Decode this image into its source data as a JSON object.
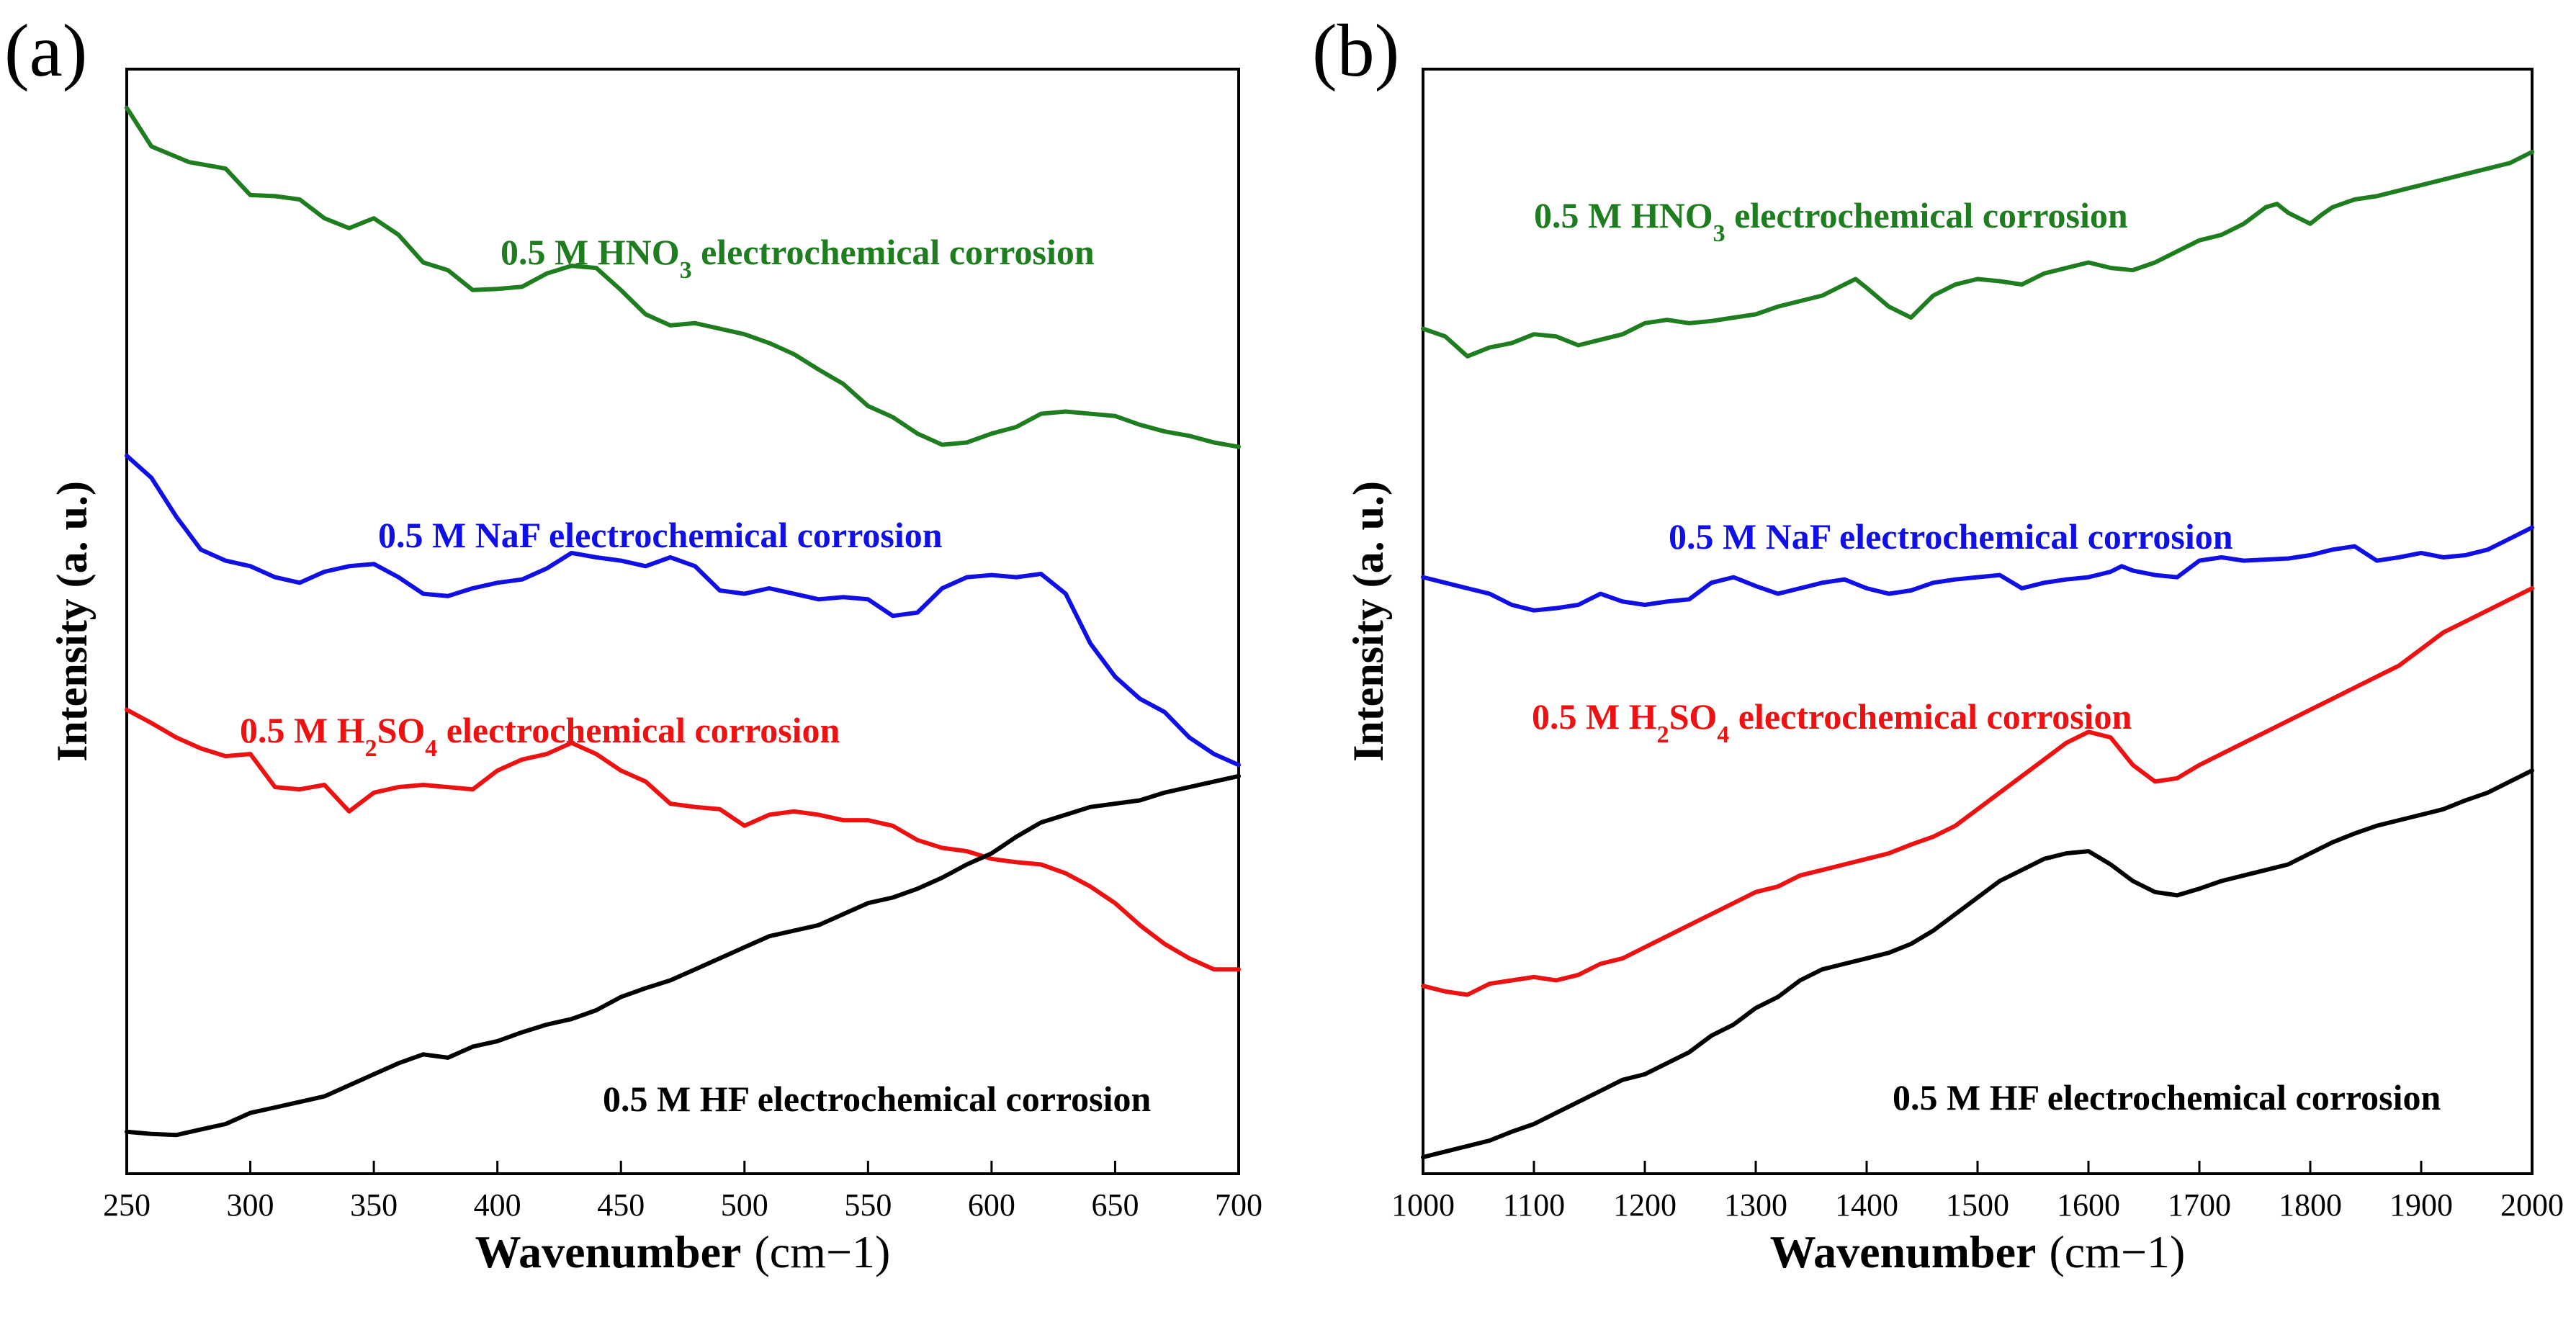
{
  "chart_data": [
    {
      "panel": "(a)",
      "type": "line",
      "xlabel": "Wavenumber",
      "xunit": "(cm−1)",
      "ylabel": "Intensity (a. u.)",
      "xlim": [
        250,
        700
      ],
      "ylim": [
        0,
        100
      ],
      "xticks": [
        250,
        300,
        350,
        400,
        450,
        500,
        550,
        600,
        650,
        700
      ],
      "yticks": [],
      "series": [
        {
          "name": "0.5 M HNO3 electrochemical corrosion",
          "label_parts": [
            "0.5 M HNO",
            "3",
            " electrochemical corrosion"
          ],
          "color": "#1e7d1e",
          "x": [
            250,
            260,
            275,
            290,
            300,
            310,
            320,
            330,
            340,
            350,
            360,
            370,
            380,
            390,
            400,
            410,
            420,
            430,
            440,
            450,
            460,
            470,
            480,
            490,
            500,
            510,
            520,
            530,
            540,
            550,
            560,
            570,
            580,
            590,
            600,
            610,
            620,
            630,
            640,
            650,
            660,
            670,
            680,
            690,
            700
          ],
          "y": [
            96.5,
            93.0,
            91.6,
            91.0,
            88.6,
            88.5,
            88.2,
            86.5,
            85.6,
            86.5,
            85.0,
            82.5,
            81.8,
            80.0,
            80.1,
            80.3,
            81.5,
            82.2,
            82.0,
            80.0,
            77.8,
            76.8,
            77.0,
            76.5,
            76.0,
            75.2,
            74.2,
            72.8,
            71.5,
            69.5,
            68.5,
            67.0,
            66.0,
            66.2,
            67.0,
            67.6,
            68.8,
            69.0,
            68.8,
            68.6,
            67.8,
            67.2,
            66.8,
            66.2,
            65.8
          ]
        },
        {
          "name": "0.5 M NaF electrochemical corrosion",
          "label_parts": [
            "0.5 M NaF electrochemical corrosion"
          ],
          "color": "#1010e6",
          "x": [
            250,
            260,
            270,
            280,
            290,
            300,
            310,
            320,
            330,
            340,
            350,
            360,
            370,
            380,
            390,
            400,
            410,
            420,
            430,
            440,
            450,
            460,
            470,
            480,
            490,
            500,
            510,
            520,
            530,
            540,
            550,
            560,
            570,
            580,
            590,
            600,
            610,
            620,
            630,
            640,
            650,
            660,
            670,
            680,
            690,
            700
          ],
          "y": [
            65.0,
            63.0,
            59.5,
            56.5,
            55.5,
            55.0,
            54.0,
            53.5,
            54.5,
            55.0,
            55.2,
            54.0,
            52.5,
            52.3,
            53.0,
            53.5,
            53.8,
            54.8,
            56.2,
            55.8,
            55.5,
            55.0,
            55.8,
            55.0,
            52.8,
            52.5,
            53.0,
            52.5,
            52.0,
            52.2,
            52.0,
            50.5,
            50.8,
            53.0,
            54.0,
            54.2,
            54.0,
            54.3,
            52.5,
            48.0,
            45.0,
            43.0,
            41.8,
            39.5,
            38.0,
            37.0
          ]
        },
        {
          "name": "0.5 M H2SO4 electrochemical corrosion",
          "label_parts": [
            "0.5 M H",
            "2",
            "SO",
            "4",
            " electrochemical corrosion"
          ],
          "color": "#ee1111",
          "x": [
            250,
            260,
            270,
            280,
            290,
            300,
            310,
            320,
            330,
            340,
            350,
            360,
            370,
            380,
            390,
            400,
            410,
            420,
            430,
            440,
            450,
            460,
            470,
            480,
            490,
            500,
            510,
            520,
            530,
            540,
            550,
            560,
            570,
            580,
            590,
            600,
            610,
            620,
            630,
            640,
            650,
            660,
            670,
            680,
            690,
            700
          ],
          "y": [
            42.0,
            40.8,
            39.5,
            38.5,
            37.8,
            38.0,
            35.0,
            34.8,
            35.2,
            32.8,
            34.5,
            35.0,
            35.2,
            35.0,
            34.8,
            36.5,
            37.5,
            38.0,
            39.0,
            38.0,
            36.5,
            35.5,
            33.5,
            33.2,
            33.0,
            31.5,
            32.5,
            32.8,
            32.5,
            32.0,
            32.0,
            31.5,
            30.2,
            29.5,
            29.2,
            28.5,
            28.2,
            28.0,
            27.2,
            26.0,
            24.5,
            22.5,
            20.8,
            19.5,
            18.5,
            18.5
          ]
        },
        {
          "name": "0.5 M HF electrochemical corrosion",
          "label_parts": [
            "0.5 M HF electrochemical corrosion"
          ],
          "color": "#000000",
          "x": [
            250,
            260,
            270,
            280,
            290,
            300,
            310,
            320,
            330,
            340,
            350,
            360,
            370,
            380,
            390,
            400,
            410,
            420,
            430,
            440,
            450,
            460,
            470,
            480,
            490,
            500,
            510,
            520,
            530,
            540,
            550,
            560,
            570,
            580,
            590,
            600,
            610,
            620,
            630,
            640,
            650,
            660,
            670,
            680,
            690,
            700
          ],
          "y": [
            3.8,
            3.6,
            3.5,
            4.0,
            4.5,
            5.5,
            6.0,
            6.5,
            7.0,
            8.0,
            9.0,
            10.0,
            10.8,
            10.5,
            11.5,
            12.0,
            12.8,
            13.5,
            14.0,
            14.8,
            16.0,
            16.8,
            17.5,
            18.5,
            19.5,
            20.5,
            21.5,
            22.0,
            22.5,
            23.5,
            24.5,
            25.0,
            25.8,
            26.8,
            28.0,
            29.0,
            30.5,
            31.8,
            32.5,
            33.2,
            33.5,
            33.8,
            34.5,
            35.0,
            35.5,
            36.0
          ]
        }
      ],
      "annotations": [
        "0.5 M HNO3 electrochemical corrosion",
        "0.5 M NaF electrochemical corrosion",
        "0.5 M H2SO4 electrochemical corrosion",
        "0.5 M HF electrochemical corrosion"
      ]
    },
    {
      "panel": "(b)",
      "type": "line",
      "xlabel": "Wavenumber",
      "xunit": "(cm−1)",
      "ylabel": "Intensity (a. u.)",
      "xlim": [
        1000,
        2000
      ],
      "ylim": [
        0,
        100
      ],
      "xticks": [
        1000,
        1100,
        1200,
        1300,
        1400,
        1500,
        1600,
        1700,
        1800,
        1900,
        2000
      ],
      "yticks": [],
      "series": [
        {
          "name": "0.5 M HNO3 electrochemical corrosion",
          "label_parts": [
            "0.5 M HNO",
            "3",
            " electrochemical corrosion"
          ],
          "color": "#1e7d1e",
          "x": [
            1000,
            1020,
            1040,
            1060,
            1080,
            1100,
            1120,
            1140,
            1160,
            1180,
            1200,
            1220,
            1240,
            1260,
            1280,
            1300,
            1320,
            1340,
            1360,
            1380,
            1390,
            1400,
            1420,
            1440,
            1450,
            1460,
            1480,
            1500,
            1520,
            1540,
            1560,
            1580,
            1600,
            1620,
            1640,
            1660,
            1680,
            1700,
            1720,
            1740,
            1760,
            1770,
            1780,
            1800,
            1810,
            1820,
            1840,
            1860,
            1880,
            1900,
            1920,
            1940,
            1960,
            1980,
            2000
          ],
          "y": [
            76.5,
            75.8,
            74.0,
            74.8,
            75.2,
            76.0,
            75.8,
            75.0,
            75.5,
            76.0,
            77.0,
            77.3,
            77.0,
            77.2,
            77.5,
            77.8,
            78.5,
            79.0,
            79.5,
            80.5,
            81.0,
            80.2,
            78.5,
            77.5,
            78.5,
            79.5,
            80.5,
            81.0,
            80.8,
            80.5,
            81.5,
            82.0,
            82.5,
            82.0,
            81.8,
            82.5,
            83.5,
            84.5,
            85.0,
            86.0,
            87.5,
            87.8,
            87.0,
            86.0,
            86.8,
            87.5,
            88.2,
            88.5,
            89.0,
            89.5,
            90.0,
            90.5,
            91.0,
            91.5,
            92.5
          ]
        },
        {
          "name": "0.5 M NaF electrochemical corrosion",
          "label_parts": [
            "0.5 M NaF electrochemical corrosion"
          ],
          "color": "#1010e6",
          "x": [
            1000,
            1020,
            1040,
            1060,
            1080,
            1100,
            1120,
            1140,
            1160,
            1180,
            1200,
            1220,
            1240,
            1260,
            1280,
            1300,
            1320,
            1340,
            1360,
            1380,
            1400,
            1420,
            1440,
            1460,
            1480,
            1500,
            1520,
            1540,
            1560,
            1580,
            1600,
            1620,
            1630,
            1640,
            1660,
            1680,
            1700,
            1720,
            1740,
            1760,
            1780,
            1800,
            1820,
            1840,
            1860,
            1880,
            1900,
            1920,
            1940,
            1960,
            1980,
            2000
          ],
          "y": [
            54.0,
            53.5,
            53.0,
            52.5,
            51.5,
            51.0,
            51.2,
            51.5,
            52.5,
            51.8,
            51.5,
            51.8,
            52.0,
            53.5,
            54.0,
            53.2,
            52.5,
            53.0,
            53.5,
            53.8,
            53.0,
            52.5,
            52.8,
            53.5,
            53.8,
            54.0,
            54.2,
            53.0,
            53.5,
            53.8,
            54.0,
            54.5,
            55.0,
            54.6,
            54.2,
            54.0,
            55.5,
            55.8,
            55.5,
            55.6,
            55.7,
            56.0,
            56.5,
            56.8,
            55.5,
            55.8,
            56.2,
            55.8,
            56.0,
            56.5,
            57.5,
            58.5
          ]
        },
        {
          "name": "0.5 M H2SO4 electrochemical corrosion",
          "label_parts": [
            "0.5 M H",
            "2",
            "SO",
            "4",
            " electrochemical corrosion"
          ],
          "color": "#ee1111",
          "x": [
            1000,
            1020,
            1040,
            1060,
            1080,
            1100,
            1120,
            1140,
            1160,
            1180,
            1200,
            1220,
            1240,
            1260,
            1280,
            1300,
            1320,
            1340,
            1360,
            1380,
            1400,
            1420,
            1440,
            1460,
            1480,
            1500,
            1520,
            1540,
            1560,
            1580,
            1600,
            1620,
            1640,
            1660,
            1680,
            1700,
            1720,
            1740,
            1760,
            1780,
            1800,
            1820,
            1840,
            1860,
            1880,
            1900,
            1920,
            1940,
            1960,
            1980,
            2000
          ],
          "y": [
            17.0,
            16.5,
            16.2,
            17.2,
            17.5,
            17.8,
            17.5,
            18.0,
            19.0,
            19.5,
            20.5,
            21.5,
            22.5,
            23.5,
            24.5,
            25.5,
            26.0,
            27.0,
            27.5,
            28.0,
            28.5,
            29.0,
            29.8,
            30.5,
            31.5,
            33.0,
            34.5,
            36.0,
            37.5,
            39.0,
            40.0,
            39.5,
            37.0,
            35.5,
            35.8,
            37.0,
            38.0,
            39.0,
            40.0,
            41.0,
            42.0,
            43.0,
            44.0,
            45.0,
            46.0,
            47.5,
            49.0,
            50.0,
            51.0,
            52.0,
            53.0
          ]
        },
        {
          "name": "0.5 M HF electrochemical corrosion",
          "label_parts": [
            "0.5 M HF electrochemical corrosion"
          ],
          "color": "#000000",
          "x": [
            1000,
            1020,
            1040,
            1060,
            1080,
            1100,
            1120,
            1140,
            1160,
            1180,
            1200,
            1220,
            1240,
            1260,
            1280,
            1300,
            1320,
            1340,
            1360,
            1380,
            1400,
            1420,
            1440,
            1460,
            1480,
            1500,
            1520,
            1540,
            1560,
            1580,
            1600,
            1620,
            1640,
            1660,
            1680,
            1700,
            1720,
            1740,
            1760,
            1780,
            1800,
            1820,
            1840,
            1860,
            1880,
            1900,
            1920,
            1940,
            1960,
            1980,
            2000
          ],
          "y": [
            1.5,
            2.0,
            2.5,
            3.0,
            3.8,
            4.5,
            5.5,
            6.5,
            7.5,
            8.5,
            9.0,
            10.0,
            11.0,
            12.5,
            13.5,
            15.0,
            16.0,
            17.5,
            18.5,
            19.0,
            19.5,
            20.0,
            20.8,
            22.0,
            23.5,
            25.0,
            26.5,
            27.5,
            28.5,
            29.0,
            29.2,
            28.0,
            26.5,
            25.5,
            25.2,
            25.8,
            26.5,
            27.0,
            27.5,
            28.0,
            29.0,
            30.0,
            30.8,
            31.5,
            32.0,
            32.5,
            33.0,
            33.8,
            34.5,
            35.5,
            36.5
          ]
        }
      ],
      "annotations": [
        "0.5 M HNO3 electrochemical corrosion",
        "0.5 M NaF electrochemical corrosion",
        "0.5 M H2SO4 electrochemical corrosion",
        "0.5 M HF electrochemical corrosion"
      ]
    }
  ]
}
